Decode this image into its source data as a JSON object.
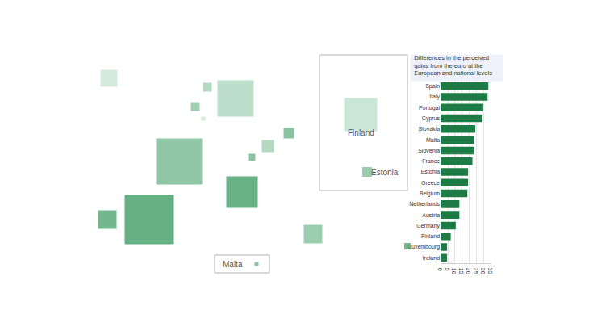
{
  "chart_data": {
    "type": "bar",
    "orientation": "horizontal",
    "title": "Differences in the perceived gains from the euro at the European and national levels",
    "categories": [
      "Spain",
      "Italy",
      "Portugal",
      "Cyprus",
      "Slovakia",
      "Malta",
      "Slovenia",
      "France",
      "Estonia",
      "Greece",
      "Belgium",
      "Netherlands",
      "Austria",
      "Germany",
      "Finland",
      "Luxembourg",
      "Ireland"
    ],
    "values": [
      33,
      32.5,
      29.5,
      29,
      24,
      23,
      23,
      22,
      19,
      19,
      18.5,
      13,
      13,
      10.5,
      7,
      4.5,
      4.5
    ],
    "color": "#1e7b45",
    "xlim": [
      0,
      35
    ],
    "xticks": [
      0,
      5,
      10,
      15,
      20,
      25,
      30,
      35
    ],
    "grid": true,
    "annotations": [
      "Finland",
      "Estonia",
      "Malta"
    ]
  }
}
